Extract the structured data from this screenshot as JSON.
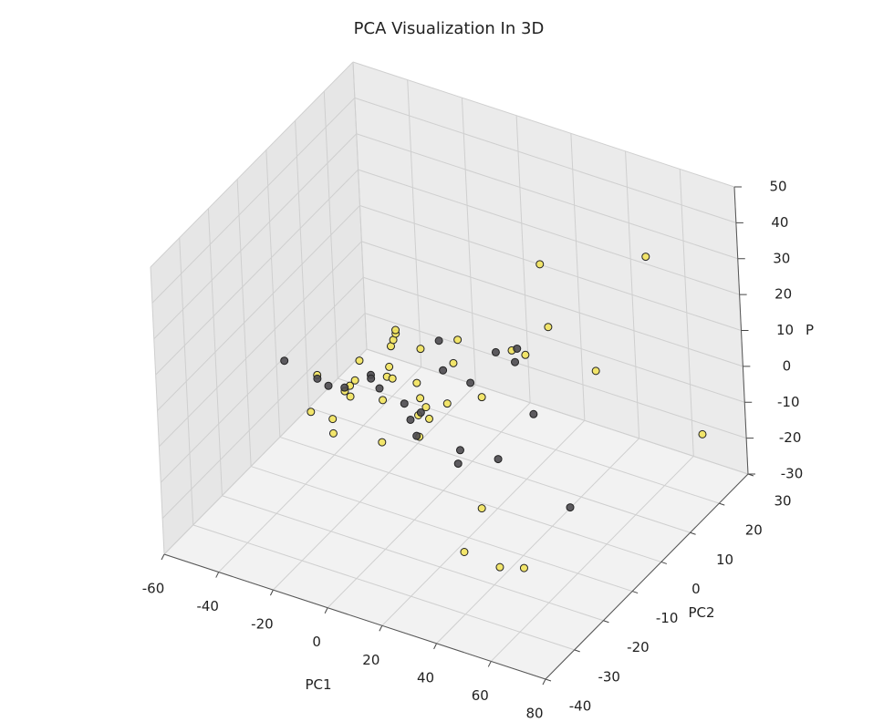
{
  "chart_data": {
    "type": "scatter3d",
    "title": "PCA Visualization In 3D",
    "x_label": "PC1",
    "y_label": "PC2",
    "z_label": "P",
    "xlim": [
      -60,
      80
    ],
    "ylim": [
      -40,
      30
    ],
    "zlim": [
      -30,
      50
    ],
    "xticks": [
      -60,
      -40,
      -20,
      0,
      20,
      40,
      60,
      80
    ],
    "yticks": [
      -40,
      -30,
      -20,
      -10,
      0,
      10,
      20,
      30
    ],
    "zticks": [
      -30,
      -20,
      -10,
      0,
      10,
      20,
      30,
      40,
      50
    ],
    "grid": true,
    "series": [
      {
        "color": "#f2e35c",
        "x": [
          -45,
          -48,
          -40,
          -40,
          -35,
          -33,
          -31,
          -33,
          -29,
          -21,
          -19,
          -17,
          -18,
          -17,
          -16,
          -15,
          -15,
          -6,
          -8,
          -7,
          -8,
          -5,
          -4,
          -8,
          -22,
          8,
          6,
          3,
          16,
          28,
          33,
          40,
          42,
          59,
          57,
          75,
          31,
          35,
          48,
          57
        ],
        "y": [
          0,
          0,
          0,
          0,
          0,
          0,
          0,
          0,
          0,
          0,
          0,
          0,
          0,
          0,
          0,
          0,
          0,
          0,
          0,
          0,
          0,
          0,
          0,
          0,
          0,
          0,
          0,
          0,
          0,
          0,
          0,
          0,
          0,
          0,
          20,
          20,
          -15,
          -25,
          -25,
          -25
        ],
        "z": [
          -9,
          -20,
          -20,
          -24,
          -11,
          -9,
          -7,
          -12,
          -1,
          -10,
          -3,
          -3,
          0,
          6,
          8,
          10,
          11,
          8,
          -2,
          -6,
          -11,
          -8,
          -11,
          -17,
          -22,
          14,
          7,
          -5,
          0,
          16,
          16,
          43,
          26,
          18,
          33,
          -12,
          -15,
          -18,
          -19,
          -17
        ]
      },
      {
        "color": "#4d4a4f",
        "x": [
          -57,
          -45,
          -41,
          -35,
          -25,
          -25,
          -22,
          -13,
          -11,
          -7,
          -9,
          1,
          2,
          12,
          7,
          6,
          21,
          22,
          30,
          29,
          35,
          47
        ],
        "y": [
          0,
          0,
          0,
          0,
          0,
          0,
          0,
          0,
          0,
          0,
          0,
          0,
          0,
          0,
          0,
          0,
          0,
          0,
          0,
          0,
          0,
          0
        ],
        "z": [
          -8,
          -10,
          -11,
          -10,
          -4,
          -5,
          -7,
          -9,
          -13,
          -10,
          -17,
          12,
          4,
          3,
          -17,
          -21,
          -16,
          14,
          17,
          13,
          0,
          -23
        ]
      }
    ]
  }
}
